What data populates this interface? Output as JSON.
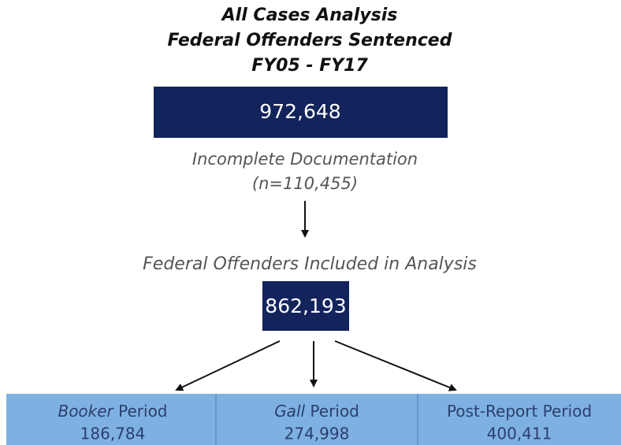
{
  "title": [
    "All Cases Analysis",
    "Federal Offenders Sentenced",
    "FY05 - FY17"
  ],
  "top_box": {
    "value": "972,648"
  },
  "exclusion": {
    "label": "Incomplete Documentation",
    "count": "(n=110,455)"
  },
  "included": {
    "label": "Federal Offenders Included in Analysis",
    "value": "862,193"
  },
  "periods": [
    {
      "label": [
        {
          "text": "Booker",
          "italic": true
        },
        {
          "text": " Period",
          "italic": false
        }
      ],
      "value": "186,784"
    },
    {
      "label": [
        {
          "text": "Gall",
          "italic": true
        },
        {
          "text": " Period",
          "italic": false
        }
      ],
      "value": "274,998"
    },
    {
      "label": [
        {
          "text": "Post-Report Period",
          "italic": false
        }
      ],
      "value": "400,411"
    }
  ]
}
